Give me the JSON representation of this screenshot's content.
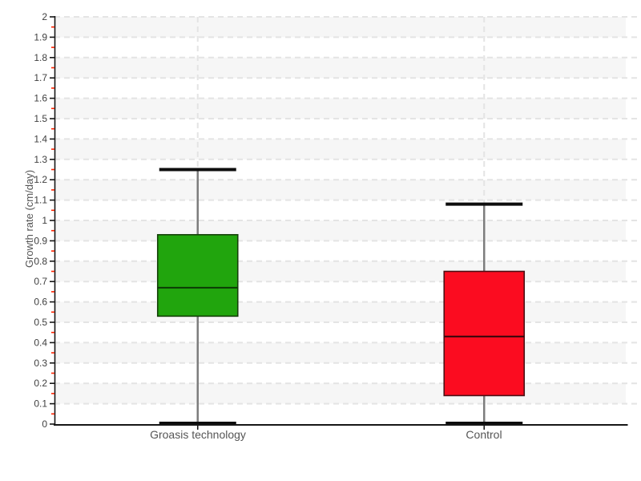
{
  "chart_data": {
    "type": "boxplot",
    "title": "",
    "xlabel": "",
    "ylabel": "Growth rate (cm/day)",
    "ylim": [
      0,
      2
    ],
    "y_major_step": 0.1,
    "y_minor_step": 0.05,
    "y_tick_labels": [
      "0",
      "0.1",
      "0.2",
      "0.3",
      "0.4",
      "0.5",
      "0.6",
      "0.7",
      "0.8",
      "0.9",
      "1",
      "1.1",
      "1.2",
      "1.3",
      "1.4",
      "1.5",
      "1.6",
      "1.7",
      "1.8",
      "1.9",
      "2"
    ],
    "categories": [
      "Groasis technology",
      "Control"
    ],
    "series": [
      {
        "name": "Groasis technology",
        "min": 0,
        "q1": 0.53,
        "median": 0.67,
        "q3": 0.93,
        "max": 1.25,
        "fill": "#21a50d",
        "border": "#154009",
        "median_color": "#0c3a05"
      },
      {
        "name": "Control",
        "min": 0,
        "q1": 0.14,
        "median": 0.43,
        "q3": 0.75,
        "max": 1.08,
        "fill": "#fb0c20",
        "border": "#4a0f14",
        "median_color": "#2f060b"
      }
    ],
    "legend": "none",
    "grid": {
      "horizontal_dashed": true,
      "vertical_category_dashed": true,
      "alternating_bands": true
    }
  },
  "style": {
    "background": "#ffffff",
    "band_color": "#f6f6f6",
    "grid_color": "#e4e4e4",
    "axis_color": "#161616",
    "major_tick_color": "#161616",
    "minor_tick_color": "#ff2200",
    "tick_label_color": "#3f3f3f",
    "category_label_color": "#555555",
    "axis_title_color": "#555555",
    "whisker_color": "#7d7d7d",
    "cap_color": "#0d0d0d"
  }
}
